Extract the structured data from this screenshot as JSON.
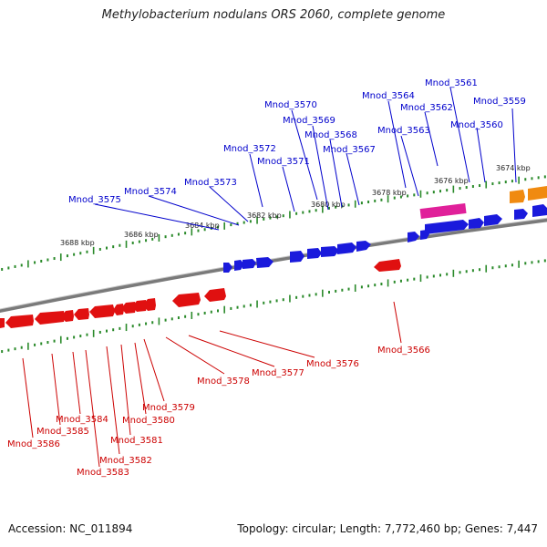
{
  "header": {
    "title": "Methylobacterium nodulans ORS 2060, complete genome"
  },
  "footer": {
    "accession": "Accession: NC_011894",
    "stats": "Topology: circular; Length: 7,772,460 bp; Genes: 7,447"
  },
  "colors": {
    "forward_gene": "#1a1adc",
    "reverse_gene": "#e01010",
    "forward_label": "#0000cc",
    "reverse_label": "#cc0000",
    "rna_gene": "#e0209a",
    "other_gene": "#f08a10",
    "backbone": "#7a7a7a",
    "tick": "#2a8a2a"
  },
  "scale_labels": [
    "3674 kbp",
    "3676 kbp",
    "3678 kbp",
    "3680 kbp",
    "3682 kbp",
    "3684 kbp",
    "3686 kbp",
    "3688 kbp"
  ],
  "forward_labels": [
    "Mnod_3559",
    "Mnod_3560",
    "Mnod_3561",
    "Mnod_3562",
    "Mnod_3563",
    "Mnod_3564",
    "Mnod_3567",
    "Mnod_3568",
    "Mnod_3569",
    "Mnod_3570",
    "Mnod_3571",
    "Mnod_3572",
    "Mnod_3573",
    "Mnod_3574",
    "Mnod_3575"
  ],
  "reverse_labels": [
    "Mnod_3566",
    "Mnod_3576",
    "Mnod_3577",
    "Mnod_3578",
    "Mnod_3579",
    "Mnod_3580",
    "Mnod_3581",
    "Mnod_3582",
    "Mnod_3583",
    "Mnod_3584",
    "Mnod_3585",
    "Mnod_3586"
  ]
}
